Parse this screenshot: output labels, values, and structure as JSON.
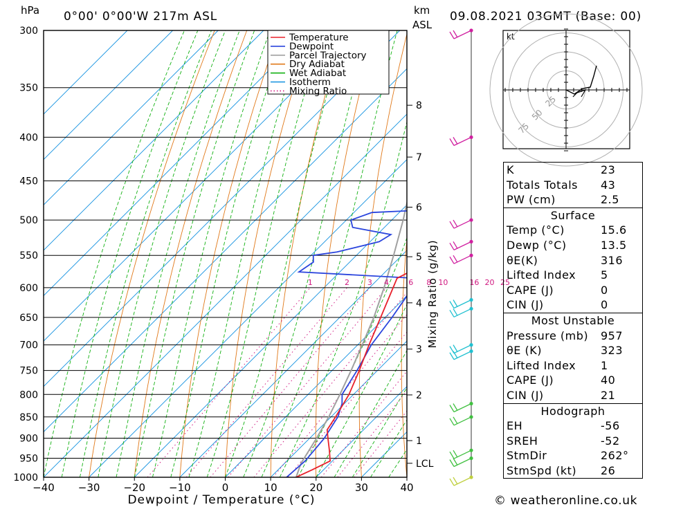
{
  "header": {
    "hpa_label": "hPa",
    "location": "0°00' 0°00'W 217m ASL",
    "km_label": "km",
    "asl_label": "ASL",
    "datetime": "09.08.2021 03GMT (Base: 00)"
  },
  "footer": {
    "credit": "© weatheronline.co.uk"
  },
  "colors": {
    "temperature": "#e8202a",
    "dewpoint": "#2a44dd",
    "parcel": "#a0a0a0",
    "dry_adiabat": "#e07818",
    "wet_adiabat": "#10b010",
    "isotherm": "#1090e0",
    "mixing_ratio": "#d01880"
  },
  "chart_data": {
    "type": "line",
    "title": "Skew-T log-P diagram",
    "xlabel": "Dewpoint / Temperature (°C)",
    "ylabel": "hPa",
    "xlim": [
      -40,
      40
    ],
    "ylim": [
      1000,
      300
    ],
    "x_ticks": [
      "−40",
      "−30",
      "−20",
      "−10",
      "0",
      "10",
      "20",
      "30",
      "40"
    ],
    "pressure_levels": [
      300,
      350,
      400,
      450,
      500,
      550,
      600,
      650,
      700,
      750,
      800,
      850,
      900,
      950,
      1000
    ],
    "height_ticks_km": [
      {
        "label": "8",
        "p": 367
      },
      {
        "label": "7",
        "p": 422
      },
      {
        "label": "6",
        "p": 483
      },
      {
        "label": "5",
        "p": 552
      },
      {
        "label": "4",
        "p": 625
      },
      {
        "label": "3",
        "p": 708
      },
      {
        "label": "2",
        "p": 801
      },
      {
        "label": "1",
        "p": 906
      },
      {
        "label": "LCL",
        "p": 963
      }
    ],
    "mixing_ratio_axis_label": "Mixing Ratio (g/kg)",
    "mixing_ratio_labels": [
      "1",
      "2",
      "3",
      "4",
      "6",
      "8",
      "10",
      "16",
      "20",
      "25"
    ],
    "mixing_ratio_values": [
      1,
      2,
      3,
      4,
      6,
      8,
      10,
      16,
      20,
      25
    ],
    "legend": [
      {
        "name": "Temperature",
        "key": "temperature",
        "style": "solid"
      },
      {
        "name": "Dewpoint",
        "key": "dewpoint",
        "style": "solid"
      },
      {
        "name": "Parcel Trajectory",
        "key": "parcel",
        "style": "solid"
      },
      {
        "name": "Dry Adiabat",
        "key": "dry_adiabat",
        "style": "solid"
      },
      {
        "name": "Wet Adiabat",
        "key": "wet_adiabat",
        "style": "solid"
      },
      {
        "name": "Isotherm",
        "key": "isotherm",
        "style": "solid"
      },
      {
        "name": "Mixing Ratio",
        "key": "mixing_ratio",
        "style": "dotted"
      }
    ],
    "series": [
      {
        "name": "Temperature",
        "key": "temperature",
        "points": [
          [
            1000,
            15.6
          ],
          [
            980,
            17.5
          ],
          [
            957,
            19.5
          ],
          [
            930,
            17.0
          ],
          [
            900,
            14.0
          ],
          [
            880,
            12.0
          ],
          [
            850,
            11.0
          ],
          [
            800,
            9.0
          ],
          [
            750,
            6.0
          ],
          [
            700,
            2.5
          ],
          [
            650,
            -1.0
          ],
          [
            600,
            -4.8
          ],
          [
            585,
            -6.0
          ],
          [
            570,
            -4.0
          ],
          [
            560,
            -4.0
          ],
          [
            540,
            -4.5
          ],
          [
            520,
            -6.0
          ],
          [
            500,
            -7.5
          ],
          [
            470,
            -10.5
          ],
          [
            450,
            -13.0
          ],
          [
            440,
            -13.5
          ],
          [
            420,
            -16.5
          ],
          [
            400,
            -19.5
          ],
          [
            380,
            -23.0
          ],
          [
            350,
            -28.0
          ],
          [
            320,
            -34.0
          ],
          [
            300,
            -37.5
          ]
        ]
      },
      {
        "name": "Dewpoint",
        "key": "dewpoint",
        "points": [
          [
            1000,
            13.5
          ],
          [
            957,
            14.0
          ],
          [
            900,
            13.2
          ],
          [
            850,
            11.5
          ],
          [
            820,
            9.5
          ],
          [
            800,
            7.5
          ],
          [
            750,
            5.5
          ],
          [
            700,
            3.0
          ],
          [
            650,
            1.5
          ],
          [
            600,
            -0.5
          ],
          [
            590,
            -0.5
          ],
          [
            585,
            -2.0
          ],
          [
            575,
            -29.0
          ],
          [
            560,
            -28.0
          ],
          [
            550,
            -29.5
          ],
          [
            545,
            -25.0
          ],
          [
            530,
            -18.0
          ],
          [
            520,
            -17.0
          ],
          [
            510,
            -27.0
          ],
          [
            500,
            -29.0
          ],
          [
            490,
            -26.0
          ],
          [
            486,
            -12.0
          ],
          [
            470,
            -20.0
          ],
          [
            455,
            -17.5
          ],
          [
            450,
            -16.0
          ],
          [
            440,
            -19.0
          ],
          [
            430,
            -22.0
          ],
          [
            420,
            -23.5
          ],
          [
            400,
            -22.0
          ],
          [
            380,
            -27.0
          ],
          [
            360,
            -34.0
          ],
          [
            340,
            -37.5
          ],
          [
            320,
            -38.0
          ],
          [
            300,
            -40.5
          ]
        ]
      },
      {
        "name": "Parcel Trajectory",
        "key": "parcel",
        "points": [
          [
            1000,
            15.6
          ],
          [
            963,
            13.6
          ],
          [
            900,
            11.5
          ],
          [
            850,
            9.5
          ],
          [
            800,
            7.0
          ],
          [
            750,
            4.2
          ],
          [
            700,
            1.0
          ],
          [
            650,
            -2.5
          ],
          [
            600,
            -6.8
          ],
          [
            550,
            -11.8
          ],
          [
            500,
            -17.5
          ],
          [
            450,
            -24.2
          ],
          [
            400,
            -32.0
          ],
          [
            350,
            -41.0
          ],
          [
            300,
            -51.5
          ]
        ]
      }
    ],
    "wind_barbs": [
      {
        "p": 300,
        "color": "#d020a0"
      },
      {
        "p": 400,
        "color": "#d020a0"
      },
      {
        "p": 500,
        "color": "#d020a0"
      },
      {
        "p": 530,
        "color": "#d020a0"
      },
      {
        "p": 550,
        "color": "#d020a0"
      },
      {
        "p": 620,
        "color": "#20c0d0"
      },
      {
        "p": 635,
        "color": "#20c0d0"
      },
      {
        "p": 700,
        "color": "#20c0d0"
      },
      {
        "p": 712,
        "color": "#20c0d0"
      },
      {
        "p": 820,
        "color": "#40c040"
      },
      {
        "p": 850,
        "color": "#40c040"
      },
      {
        "p": 930,
        "color": "#40c040"
      },
      {
        "p": 950,
        "color": "#40c040"
      },
      {
        "p": 1000,
        "color": "#c0d040"
      }
    ],
    "hodograph": {
      "units": "kt",
      "ring_labels": [
        "25",
        "50",
        "75"
      ],
      "ring_values": [
        25,
        50,
        75
      ]
    }
  },
  "indices": {
    "general": [
      {
        "label": "K",
        "value": "23"
      },
      {
        "label": "Totals Totals",
        "value": "43"
      },
      {
        "label": "PW (cm)",
        "value": "2.5"
      }
    ],
    "surface": {
      "title": "Surface",
      "rows": [
        {
          "label": "Temp (°C)",
          "value": "15.6"
        },
        {
          "label": "Dewp (°C)",
          "value": "13.5"
        },
        {
          "label": "θE(K)",
          "value": "316"
        },
        {
          "label": "Lifted Index",
          "value": "5"
        },
        {
          "label": "CAPE (J)",
          "value": "0"
        },
        {
          "label": "CIN (J)",
          "value": "0"
        }
      ]
    },
    "most_unstable": {
      "title": "Most Unstable",
      "rows": [
        {
          "label": "Pressure (mb)",
          "value": "957"
        },
        {
          "label": "θE (K)",
          "value": "323"
        },
        {
          "label": "Lifted Index",
          "value": "1"
        },
        {
          "label": "CAPE (J)",
          "value": "40"
        },
        {
          "label": "CIN (J)",
          "value": "21"
        }
      ]
    },
    "hodograph": {
      "title": "Hodograph",
      "rows": [
        {
          "label": "EH",
          "value": "-56"
        },
        {
          "label": "SREH",
          "value": "-52"
        },
        {
          "label": "StmDir",
          "value": "262°"
        },
        {
          "label": "StmSpd (kt)",
          "value": "26"
        }
      ]
    }
  }
}
